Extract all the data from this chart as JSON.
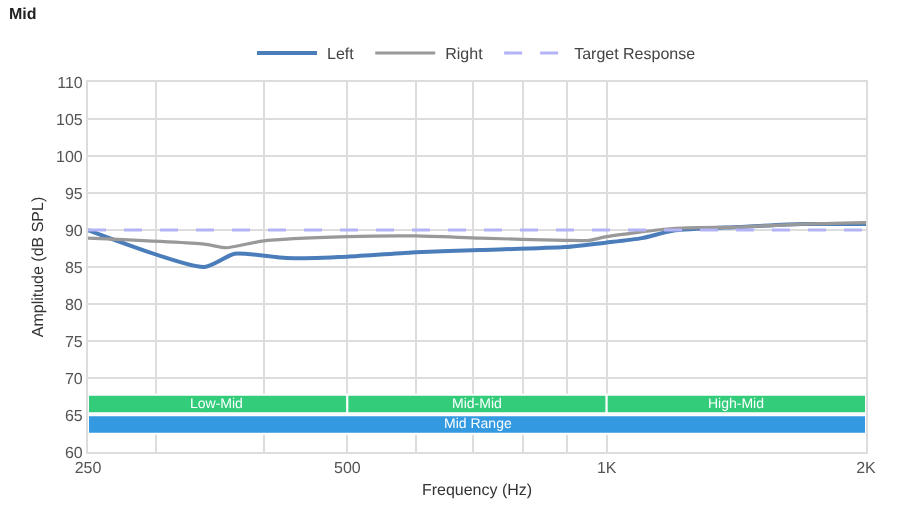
{
  "chart_data": {
    "type": "line",
    "title": "Mid",
    "xlabel": "Frequency (Hz)",
    "ylabel": "Amplitude (dB SPL)",
    "log": "x",
    "xlim": [
      250,
      2000
    ],
    "xticks": [
      250,
      {
        "value": 300,
        "label": null
      },
      {
        "value": 400,
        "label": null
      },
      500,
      {
        "value": 600,
        "label": null
      },
      {
        "value": 700,
        "label": null
      },
      {
        "value": 800,
        "label": null
      },
      {
        "value": 900,
        "label": null
      },
      {
        "value": 1000,
        "label": "1K"
      },
      {
        "value": 2000,
        "label": "2K"
      }
    ],
    "ylim": [
      60,
      110
    ],
    "yticks": [
      60,
      65,
      70,
      75,
      80,
      85,
      90,
      95,
      100,
      105,
      110
    ],
    "grid": true,
    "legend": "top",
    "marker": "none",
    "series": [
      {
        "name": "Left",
        "color": "#4a7dba",
        "line_style": "solid",
        "x": [
          250,
          341,
          370,
          425,
          500,
          601,
          713,
          894,
          1000,
          1099,
          1193,
          1421,
          1687,
          2000
        ],
        "values": [
          90.0,
          85.0,
          86.8,
          86.2,
          86.4,
          87.0,
          87.3,
          87.7,
          88.3,
          88.9,
          89.9,
          90.4,
          90.8,
          90.8
        ]
      },
      {
        "name": "Right",
        "color": "#999999",
        "line_style": "solid",
        "x": [
          250,
          341,
          362,
          398,
          500,
          601,
          713,
          894,
          955,
          1000,
          1193,
          1421,
          1687,
          2000
        ],
        "values": [
          88.9,
          88.1,
          87.6,
          88.5,
          89.1,
          89.2,
          88.9,
          88.6,
          88.6,
          89.1,
          90.2,
          90.4,
          90.8,
          91.0
        ]
      },
      {
        "name": "Target Response",
        "color": "#b3b3f5",
        "line_style": "dashed",
        "x": [
          250,
          2000
        ],
        "values": [
          90,
          90
        ]
      }
    ],
    "bands": [
      {
        "axis": "x",
        "from": 250,
        "to": 500,
        "label": "Low-Mid",
        "color": "#33cc7a"
      },
      {
        "axis": "x",
        "from": 500,
        "to": 1000,
        "label": "Mid-Mid",
        "color": "#33cc7a"
      },
      {
        "axis": "x",
        "from": 1000,
        "to": 2000,
        "label": "High-Mid",
        "color": "#33cc7a"
      },
      {
        "axis": "x",
        "from": 250,
        "to": 2000,
        "label": "Mid Range",
        "color": "#3399e0"
      }
    ]
  }
}
